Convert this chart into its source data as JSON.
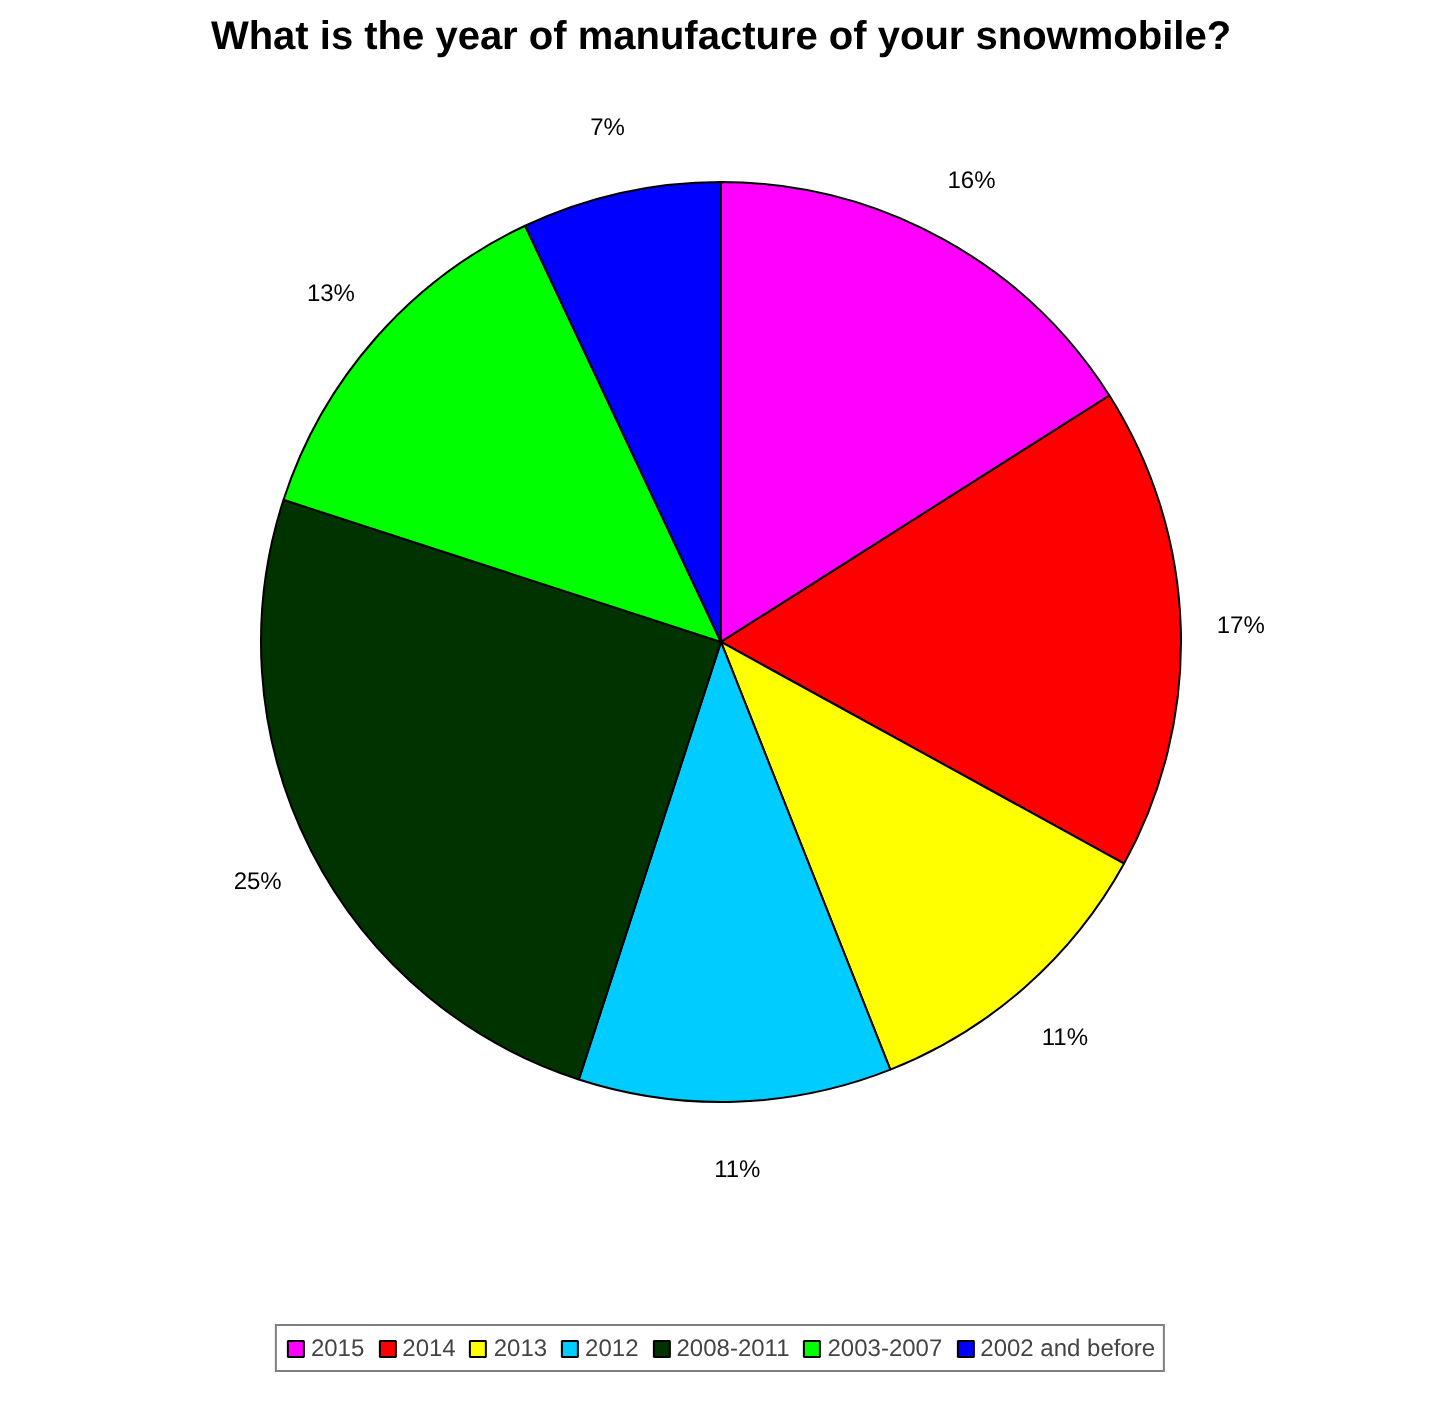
{
  "chart_data": {
    "type": "pie",
    "title": "What is the year of manufacture of your snowmobile?",
    "categories": [
      "2015",
      "2014",
      "2013",
      "2012",
      "2008-2011",
      "2003-2007",
      "2002 and before"
    ],
    "values": [
      16,
      17,
      11,
      11,
      25,
      13,
      7
    ],
    "colors": [
      "#ff00ff",
      "#ff0000",
      "#ffff00",
      "#00ccff",
      "#003300",
      "#00ff00",
      "#0000ff"
    ],
    "value_labels": [
      "16%",
      "17%",
      "11%",
      "11%",
      "25%",
      "13%",
      "7%"
    ],
    "legend": "bottom"
  }
}
